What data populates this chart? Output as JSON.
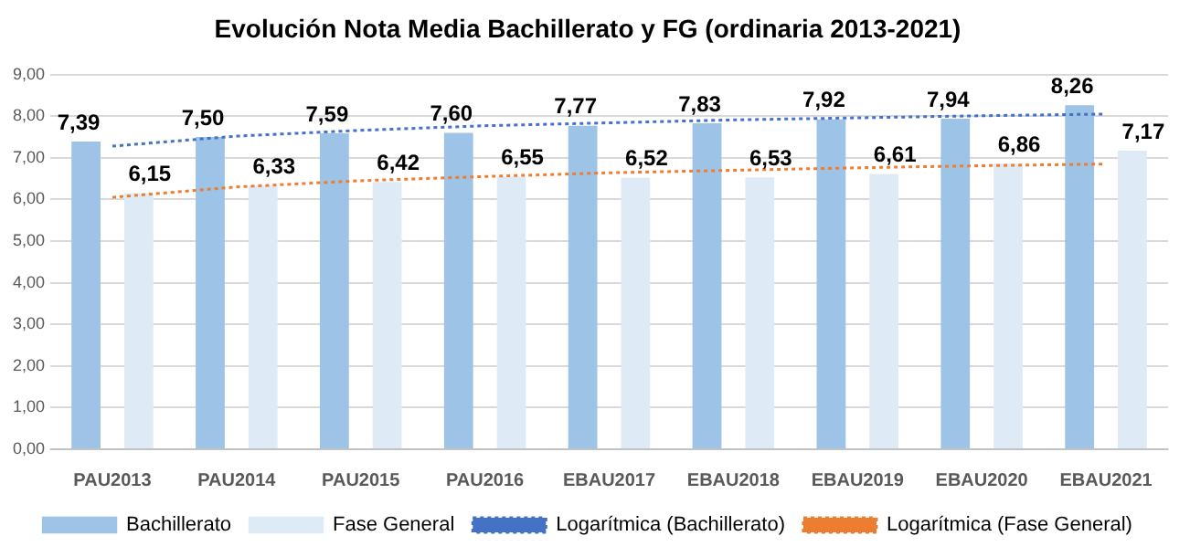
{
  "chart_data": {
    "type": "bar",
    "title": "Evolución Nota Media Bachillerato y FG (ordinaria 2013-2021)",
    "categories": [
      "PAU2013",
      "PAU2014",
      "PAU2015",
      "PAU2016",
      "EBAU2017",
      "EBAU2018",
      "EBAU2019",
      "EBAU2020",
      "EBAU2021"
    ],
    "series": [
      {
        "name": "Bachillerato",
        "color": "#9dc3e6",
        "values": [
          7.39,
          7.5,
          7.59,
          7.6,
          7.77,
          7.83,
          7.92,
          7.94,
          8.26
        ],
        "value_labels": [
          "7,39",
          "7,50",
          "7,59",
          "7,60",
          "7,77",
          "7,83",
          "7,92",
          "7,94",
          "8,26"
        ]
      },
      {
        "name": "Fase General",
        "color": "#deebf7",
        "values": [
          6.15,
          6.33,
          6.42,
          6.55,
          6.52,
          6.53,
          6.61,
          6.86,
          7.17
        ],
        "value_labels": [
          "6,15",
          "6,33",
          "6,42",
          "6,55",
          "6,52",
          "6,53",
          "6,61",
          "6,86",
          "7,17"
        ]
      },
      {
        "name": "Logarítmica (Bachillerato)",
        "type": "line",
        "color": "#4472c4",
        "line_style": "dotted",
        "marker": "none",
        "values": [
          7.28,
          7.52,
          7.66,
          7.77,
          7.84,
          7.91,
          7.96,
          8.01,
          8.05
        ]
      },
      {
        "name": "Logarítmica (Fase General)",
        "type": "line",
        "color": "#ed7d31",
        "line_style": "dotted",
        "marker": "none",
        "values": [
          6.05,
          6.3,
          6.45,
          6.55,
          6.64,
          6.7,
          6.76,
          6.81,
          6.85
        ]
      }
    ],
    "ylim": [
      0,
      9
    ],
    "yticks": [
      {
        "value": 0,
        "label": "0,00"
      },
      {
        "value": 1,
        "label": "1,00"
      },
      {
        "value": 2,
        "label": "2,00"
      },
      {
        "value": 3,
        "label": "3,00"
      },
      {
        "value": 4,
        "label": "4,00"
      },
      {
        "value": 5,
        "label": "5,00"
      },
      {
        "value": 6,
        "label": "6,00"
      },
      {
        "value": 7,
        "label": "7,00"
      },
      {
        "value": 8,
        "label": "8,00"
      },
      {
        "value": 9,
        "label": "9,00"
      }
    ],
    "grid": "y",
    "legend": "bottom"
  }
}
